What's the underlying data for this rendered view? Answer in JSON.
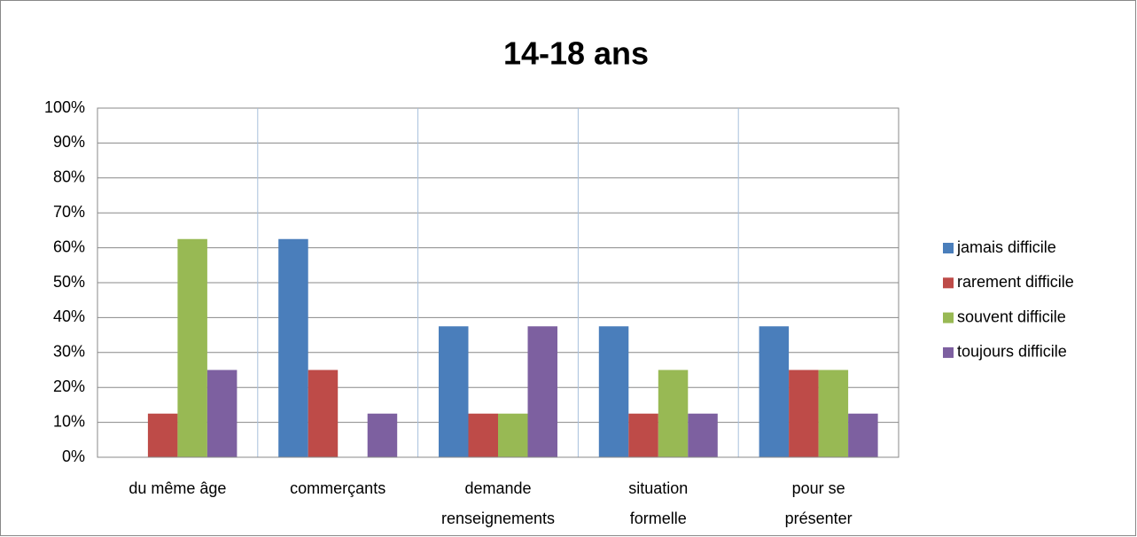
{
  "chart_data": {
    "type": "bar",
    "title": "14-18 ans",
    "categories": [
      "du même âge",
      "commerçants",
      "demande\nrenseignements",
      "situation\nformelle",
      "pour se\nprésenter"
    ],
    "series": [
      {
        "name": "jamais difficile",
        "color": "#4a7ebb",
        "values": [
          0,
          62.5,
          37.5,
          37.5,
          37.5
        ]
      },
      {
        "name": "rarement difficile",
        "color": "#be4b48",
        "values": [
          12.5,
          25,
          12.5,
          12.5,
          25
        ]
      },
      {
        "name": "souvent difficile",
        "color": "#98b954",
        "values": [
          62.5,
          0,
          12.5,
          25,
          25
        ]
      },
      {
        "name": "toujours difficile",
        "color": "#7d60a0",
        "values": [
          25,
          12.5,
          37.5,
          12.5,
          12.5
        ]
      }
    ],
    "ylim": [
      0,
      100
    ],
    "yticks": [
      {
        "value": 0,
        "label": "0%"
      },
      {
        "value": 10,
        "label": "10%"
      },
      {
        "value": 20,
        "label": "20%"
      },
      {
        "value": 30,
        "label": "30%"
      },
      {
        "value": 40,
        "label": "40%"
      },
      {
        "value": 50,
        "label": "50%"
      },
      {
        "value": 60,
        "label": "60%"
      },
      {
        "value": 70,
        "label": "70%"
      },
      {
        "value": 80,
        "label": "80%"
      },
      {
        "value": 90,
        "label": "90%"
      },
      {
        "value": 100,
        "label": "100%"
      }
    ],
    "grid": true,
    "legend": "right"
  }
}
